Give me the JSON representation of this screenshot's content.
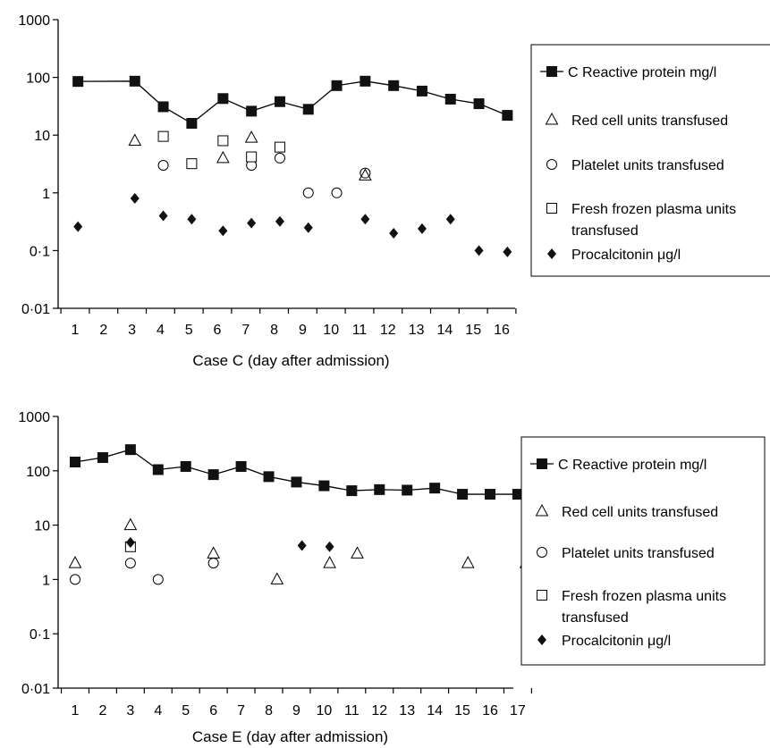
{
  "chart_data": [
    {
      "type": "scatter",
      "yscale": "log",
      "ylim": [
        0.01,
        1000
      ],
      "yticks": [
        "1000",
        "100",
        "10",
        "1",
        "0·1",
        "0·01"
      ],
      "x": [
        "1",
        "2",
        "3",
        "4",
        "5",
        "6",
        "7",
        "8",
        "9",
        "10",
        "11",
        "12",
        "13",
        "14",
        "15",
        "16"
      ],
      "xlabel": "Case C (day after admission)",
      "legend_position": "right",
      "series": [
        {
          "name": "C Reactive protein mg/l",
          "marker": "filled-square",
          "line": true,
          "points": [
            [
              1.1,
              85
            ],
            [
              3.1,
              86
            ],
            [
              4.1,
              31
            ],
            [
              5.1,
              16
            ],
            [
              6.2,
              43
            ],
            [
              7.2,
              26
            ],
            [
              8.2,
              38
            ],
            [
              9.2,
              28
            ],
            [
              10.2,
              72
            ],
            [
              11.2,
              86
            ],
            [
              12.2,
              72
            ],
            [
              13.2,
              58
            ],
            [
              14.2,
              42
            ],
            [
              15.2,
              35
            ],
            [
              16.2,
              22
            ]
          ]
        },
        {
          "name": "Red cell units transfused",
          "marker": "open-triangle",
          "points": [
            [
              3.1,
              8
            ],
            [
              6.2,
              4
            ],
            [
              7.2,
              9
            ],
            [
              11.2,
              2
            ]
          ]
        },
        {
          "name": "Platelet units transfused",
          "marker": "open-circle",
          "points": [
            [
              4.1,
              3
            ],
            [
              7.2,
              3
            ],
            [
              8.2,
              4
            ],
            [
              9.2,
              1
            ],
            [
              10.2,
              1
            ],
            [
              11.2,
              2.2
            ]
          ]
        },
        {
          "name": "Fresh frozen plasma units transfused",
          "marker": "open-square",
          "points": [
            [
              4.1,
              9.5
            ],
            [
              5.1,
              3.2
            ],
            [
              6.2,
              8
            ],
            [
              7.2,
              4.2
            ],
            [
              8.2,
              6.2
            ]
          ]
        },
        {
          "name": "Procalcitonin μg/l",
          "marker": "filled-diamond",
          "points": [
            [
              1.1,
              0.26
            ],
            [
              3.1,
              0.8
            ],
            [
              4.1,
              0.4
            ],
            [
              5.1,
              0.35
            ],
            [
              6.2,
              0.22
            ],
            [
              7.2,
              0.3
            ],
            [
              8.2,
              0.32
            ],
            [
              9.2,
              0.25
            ],
            [
              11.2,
              0.35
            ],
            [
              12.2,
              0.2
            ],
            [
              13.2,
              0.24
            ],
            [
              14.2,
              0.35
            ],
            [
              15.2,
              0.1
            ],
            [
              16.2,
              0.095
            ]
          ]
        }
      ]
    },
    {
      "type": "scatter",
      "yscale": "log",
      "ylim": [
        0.01,
        1000
      ],
      "yticks": [
        "1000",
        "100",
        "10",
        "1",
        "0·1",
        "0·01"
      ],
      "x": [
        "1",
        "2",
        "3",
        "4",
        "5",
        "6",
        "7",
        "8",
        "9",
        "10",
        "11",
        "12",
        "13",
        "14",
        "15",
        "16",
        "17"
      ],
      "xlabel": "Case E (day after admission)",
      "legend_position": "right",
      "series": [
        {
          "name": "C Reactive protein mg/l",
          "marker": "filled-square",
          "line": true,
          "points": [
            [
              1,
              145
            ],
            [
              2,
              175
            ],
            [
              3,
              245
            ],
            [
              4,
              105
            ],
            [
              5,
              120
            ],
            [
              6,
              85
            ],
            [
              7,
              120
            ],
            [
              8,
              78
            ],
            [
              9,
              62
            ],
            [
              10,
              53
            ],
            [
              11,
              43
            ],
            [
              12,
              45
            ],
            [
              13,
              44
            ],
            [
              14,
              48
            ],
            [
              15,
              37
            ],
            [
              16,
              37
            ],
            [
              17,
              37
            ]
          ]
        },
        {
          "name": "Red cell units transfused",
          "marker": "open-triangle",
          "points": [
            [
              1,
              2
            ],
            [
              3,
              10
            ],
            [
              6,
              3
            ],
            [
              8.3,
              1
            ],
            [
              10.2,
              2
            ],
            [
              11.2,
              3
            ],
            [
              15.2,
              2
            ],
            [
              17.3,
              2
            ]
          ]
        },
        {
          "name": "Platelet units transfused",
          "marker": "open-circle",
          "points": [
            [
              1,
              1
            ],
            [
              3,
              2
            ],
            [
              4,
              1
            ],
            [
              6,
              2
            ]
          ]
        },
        {
          "name": "Fresh frozen plasma units transfused",
          "marker": "open-square",
          "points": [
            [
              3,
              4
            ]
          ]
        },
        {
          "name": "Procalcitonin μg/l",
          "marker": "filled-diamond",
          "points": [
            [
              3,
              4.8
            ],
            [
              9.2,
              4.2
            ],
            [
              10.2,
              4
            ]
          ]
        }
      ]
    }
  ]
}
